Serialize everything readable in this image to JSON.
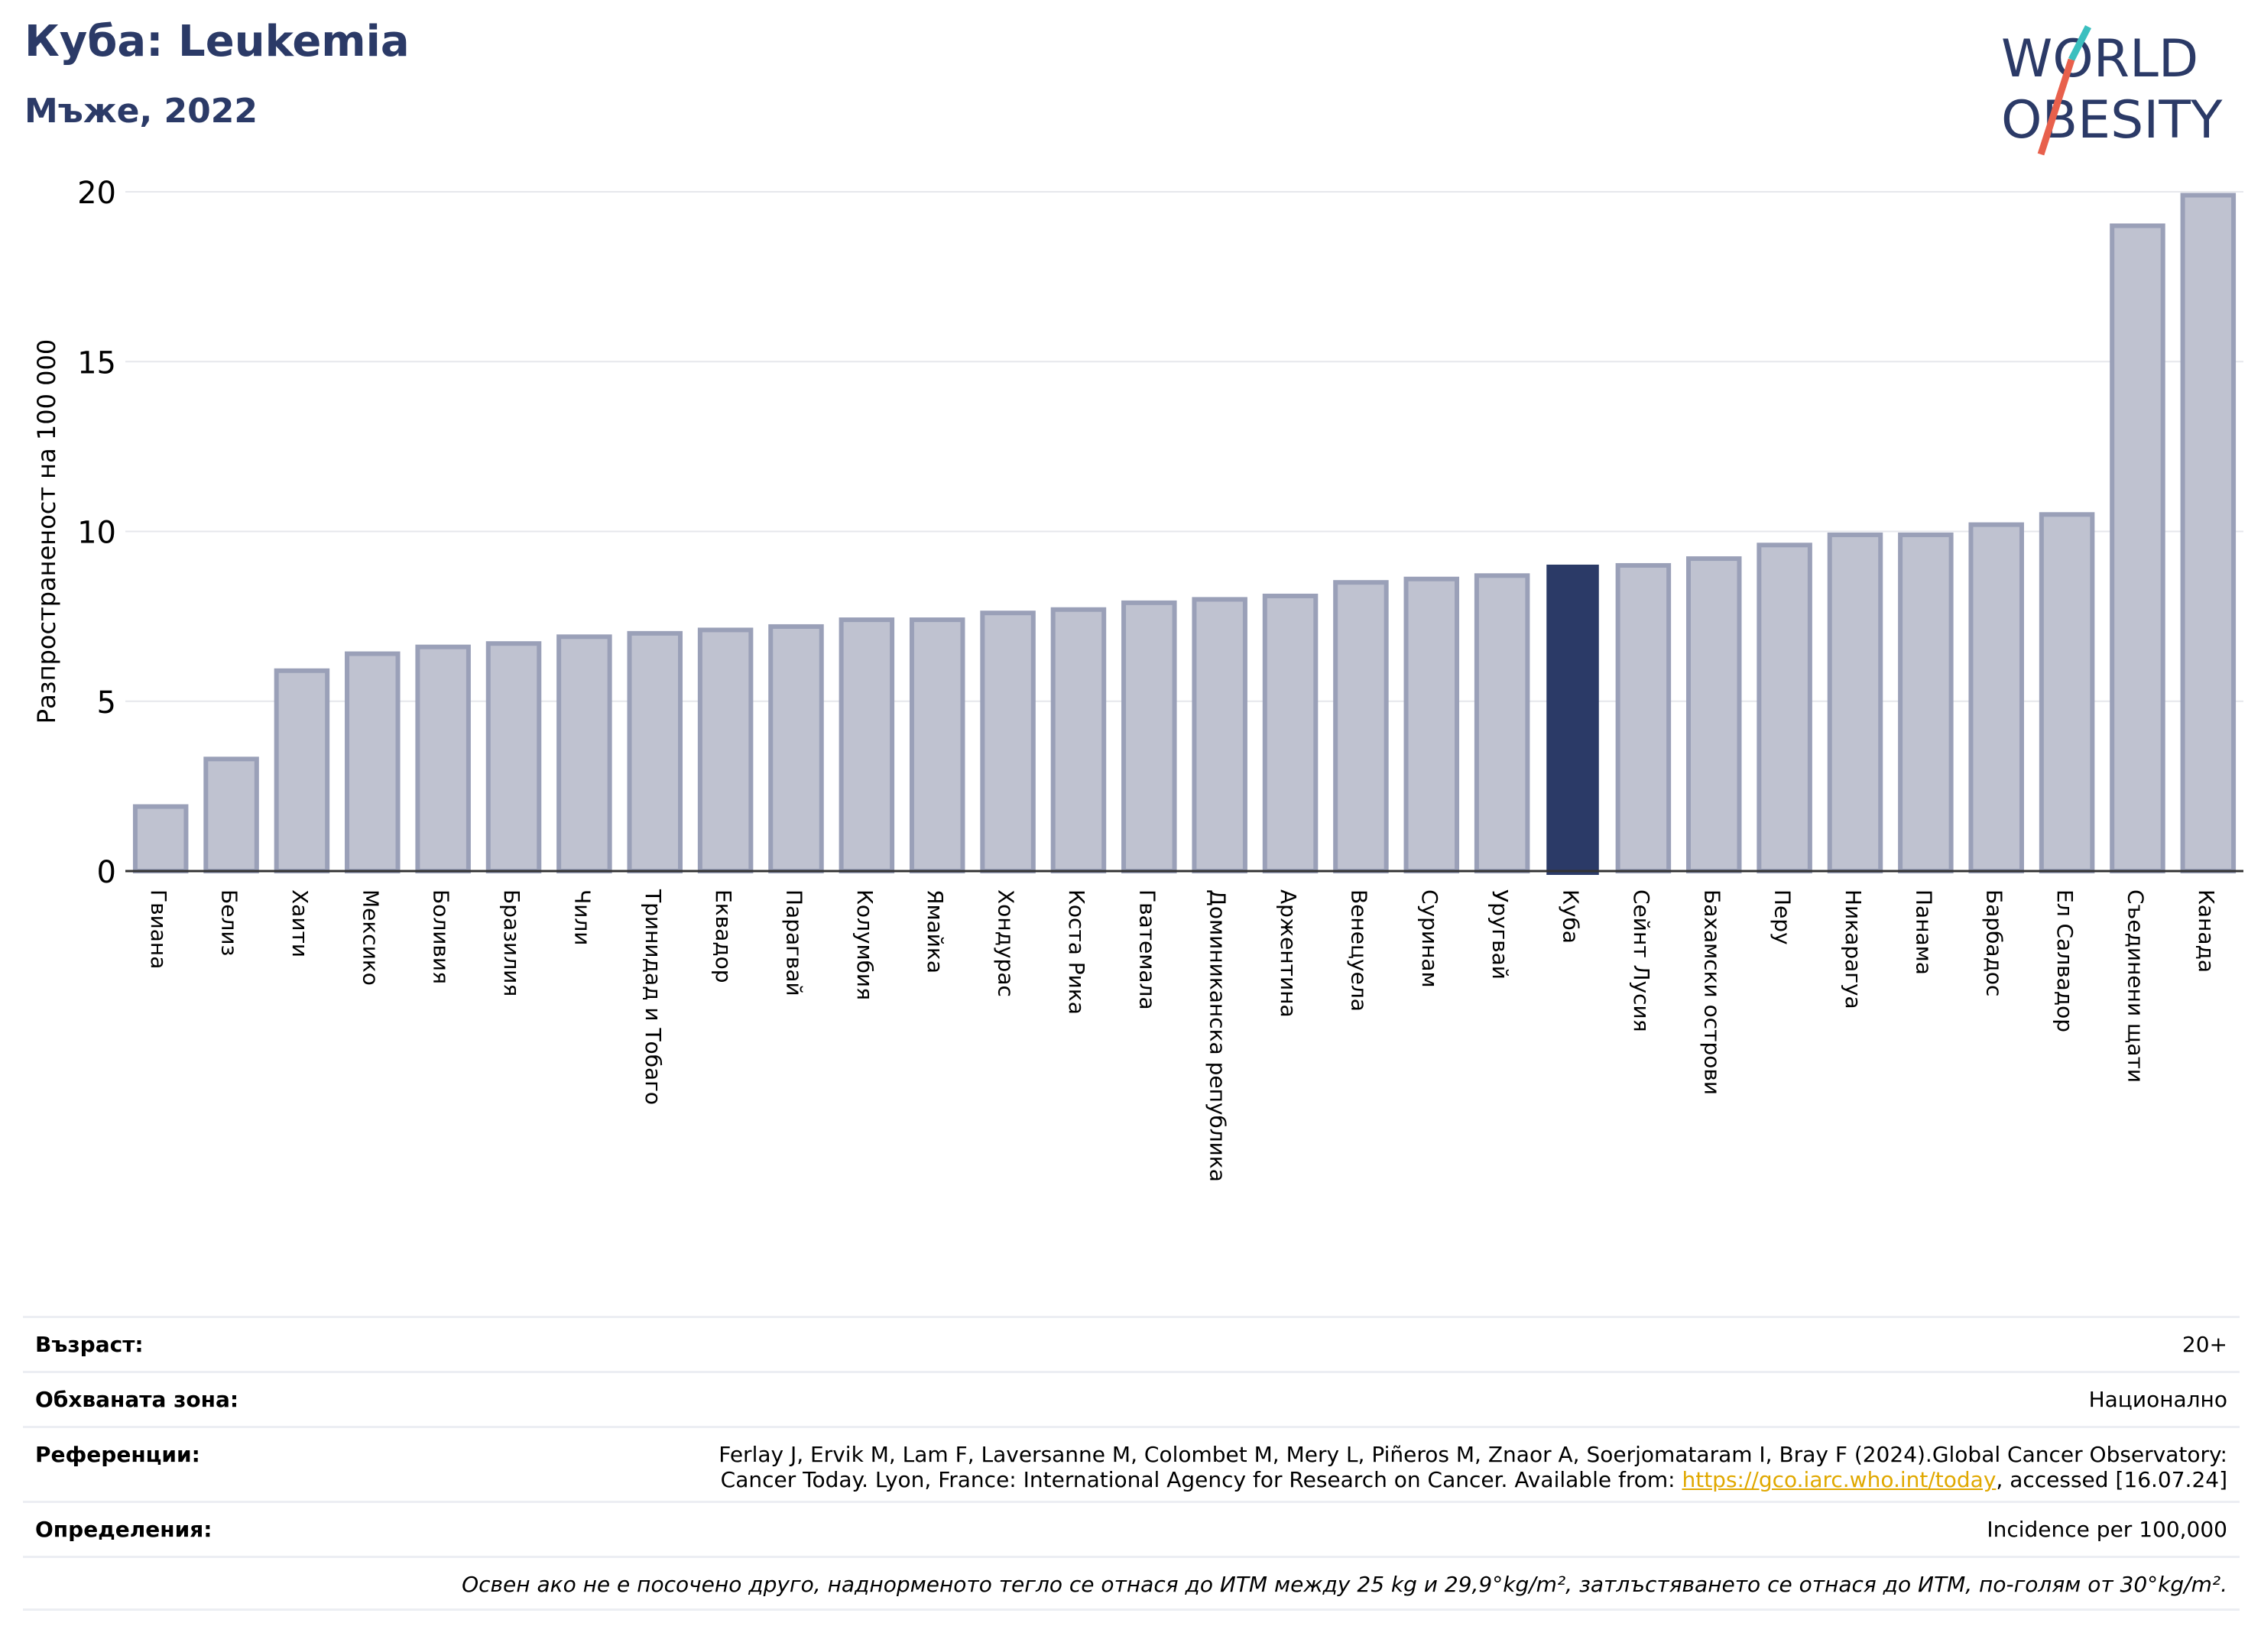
{
  "title": "Куба: Leukemia",
  "subtitle": "Мъже, 2022",
  "logo": {
    "line1": "WORLD",
    "line2": "OBESITY",
    "colors": {
      "text": "#2b3a67",
      "slash_top": "#3bbfbf",
      "slash_bottom": "#e8604c"
    }
  },
  "colors": {
    "bar": "#bfc2d0",
    "bar_edge": "#9aa0b8",
    "highlight": "#2b3a67",
    "grid": "#e6e7ec",
    "axis": "#333333"
  },
  "chart_data": {
    "type": "bar",
    "ylabel": "Разпространеност  на 100 000",
    "ylim": [
      0,
      20
    ],
    "yticks": [
      0,
      5,
      10,
      15,
      20
    ],
    "grid": true,
    "highlight": "Куба",
    "categories": [
      "Гвиана",
      "Белиз",
      "Хаити",
      "Мексико",
      "Боливия",
      "Бразилия",
      "Чили",
      "Тринидад и Тобаго",
      "Еквадор",
      "Парагвай",
      "Колумбия",
      "Ямайка",
      "Хондурас",
      "Коста Рика",
      "Гватемала",
      "Доминиканска република",
      "Аржентина",
      "Венецуела",
      "Суринам",
      "Уругвай",
      "Куба",
      "Сейнт Лусия",
      "Бахамски острови",
      "Перу",
      "Никарагуа",
      "Панама",
      "Барбадос",
      "Ел Салвадор",
      "Съединени щати",
      "Канада"
    ],
    "values": [
      1.9,
      3.3,
      5.9,
      6.4,
      6.6,
      6.7,
      6.9,
      7.0,
      7.1,
      7.2,
      7.4,
      7.4,
      7.6,
      7.7,
      7.9,
      8.0,
      8.1,
      8.5,
      8.6,
      8.7,
      9.0,
      9.0,
      9.2,
      9.6,
      9.9,
      9.9,
      10.2,
      10.5,
      19.0,
      19.9
    ]
  },
  "info": {
    "age_label": "Възраст:",
    "age_value": "20+",
    "area_label": "Обхваната зона:",
    "area_value": "Национално",
    "ref_label": "Референции:",
    "ref_line1": "Ferlay J, Ervik M, Lam F, Laversanne M, Colombet M, Mery L, Piñeros M, Znaor A, Soerjomataram I, Bray F (2024).Global Cancer Observatory:",
    "ref_line2_pre": "Cancer Today. Lyon, France: International Agency for Research on Cancer. Available from: ",
    "ref_link": "https://gco.iarc.who.int/today",
    "ref_line2_post": ", accessed [16.07.24]",
    "def_label": "Определения:",
    "def_value": "Incidence per 100,000",
    "note": "Освен ако не е посочено друго, наднорменото тегло се отнася до ИТМ между 25 kg и 29,9°kg/m², затлъстяването се отнася до ИТМ, по-голям от 30°kg/m²."
  }
}
